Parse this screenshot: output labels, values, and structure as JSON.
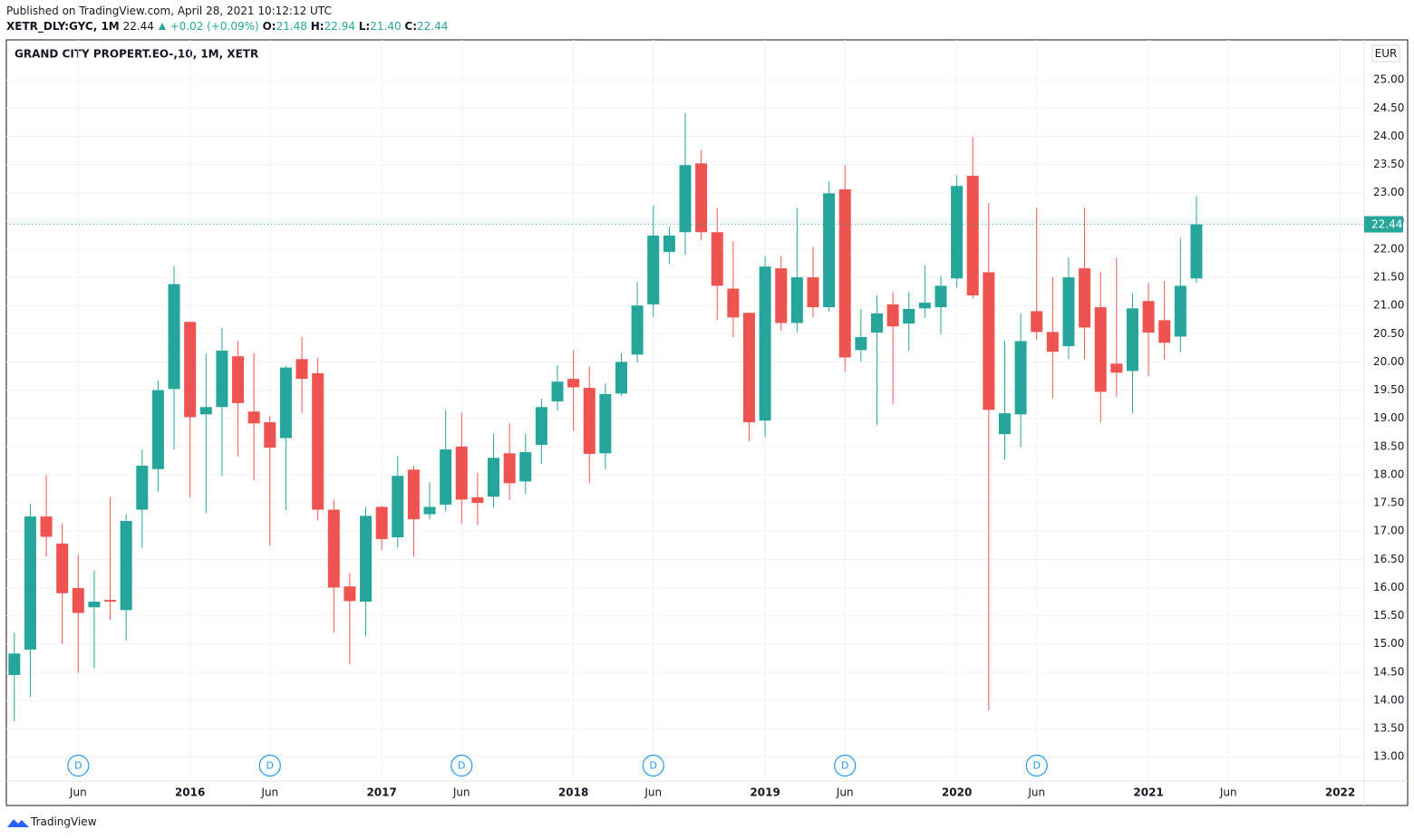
{
  "header": {
    "published": "Published on TradingView.com, April 28, 2021 10:12:12 UTC",
    "symbol": "XETR_DLY:GYC, 1M",
    "last": "22.44",
    "change": "+0.02 (+0.09%)",
    "o_label": "O:",
    "o": "21.48",
    "h_label": "H:",
    "h": "22.94",
    "l_label": "L:",
    "l": "21.40",
    "c_label": "C:",
    "c": "22.44"
  },
  "footer": {
    "brand": "TradingView"
  },
  "chart_data": {
    "type": "candlestick",
    "title": "GRAND CITY PROPERT.EO-,10, 1M, XETR",
    "currency": "EUR",
    "x": [
      "2015-02",
      "2015-03",
      "2015-04",
      "2015-05",
      "2015-06",
      "2015-07",
      "2015-08",
      "2015-09",
      "2015-10",
      "2015-11",
      "2015-12",
      "2016-01",
      "2016-02",
      "2016-03",
      "2016-04",
      "2016-05",
      "2016-06",
      "2016-07",
      "2016-08",
      "2016-09",
      "2016-10",
      "2016-11",
      "2016-12",
      "2017-01",
      "2017-02",
      "2017-03",
      "2017-04",
      "2017-05",
      "2017-06",
      "2017-07",
      "2017-08",
      "2017-09",
      "2017-10",
      "2017-11",
      "2017-12",
      "2018-01",
      "2018-02",
      "2018-03",
      "2018-04",
      "2018-05",
      "2018-06",
      "2018-07",
      "2018-08",
      "2018-09",
      "2018-10",
      "2018-11",
      "2018-12",
      "2019-01",
      "2019-02",
      "2019-03",
      "2019-04",
      "2019-05",
      "2019-06",
      "2019-07",
      "2019-08",
      "2019-09",
      "2019-10",
      "2019-11",
      "2019-12",
      "2020-01",
      "2020-02",
      "2020-03",
      "2020-04",
      "2020-05",
      "2020-06",
      "2020-07",
      "2020-08",
      "2020-09",
      "2020-10",
      "2020-11",
      "2020-12",
      "2021-01",
      "2021-02",
      "2021-03",
      "2021-04"
    ],
    "open": [
      14.45,
      14.9,
      17.26,
      16.78,
      15.99,
      15.65,
      15.78,
      15.6,
      17.38,
      18.1,
      19.52,
      20.71,
      19.07,
      19.2,
      20.1,
      19.12,
      18.93,
      18.65,
      20.05,
      19.8,
      17.38,
      16.02,
      15.75,
      17.43,
      16.89,
      18.09,
      17.3,
      17.47,
      18.5,
      17.6,
      17.61,
      18.38,
      17.88,
      18.53,
      19.3,
      19.7,
      19.54,
      18.38,
      19.44,
      20.13,
      21.02,
      21.95,
      22.3,
      23.52,
      22.3,
      21.3,
      20.87,
      18.96,
      21.66,
      20.69,
      21.5,
      20.97,
      23.06,
      20.21,
      20.52,
      21.02,
      20.68,
      20.95,
      20.97,
      21.48,
      23.3,
      21.59,
      18.72,
      19.07,
      20.9,
      20.53,
      20.28,
      21.66,
      20.97,
      19.97,
      19.84,
      21.08,
      20.74,
      20.45,
      21.48
    ],
    "high": [
      15.2,
      17.48,
      18.0,
      17.13,
      16.58,
      16.3,
      17.6,
      17.3,
      18.45,
      19.67,
      21.7,
      20.71,
      20.15,
      20.6,
      20.37,
      20.16,
      19.04,
      19.93,
      20.44,
      20.07,
      17.56,
      16.26,
      17.43,
      17.45,
      18.33,
      18.16,
      17.87,
      19.15,
      19.1,
      18.03,
      18.73,
      18.91,
      18.73,
      19.35,
      19.94,
      20.21,
      19.92,
      19.62,
      20.15,
      21.42,
      22.77,
      22.4,
      24.41,
      23.76,
      22.73,
      22.14,
      20.87,
      21.87,
      21.87,
      22.73,
      22.04,
      23.2,
      23.49,
      20.94,
      21.18,
      21.24,
      21.24,
      21.71,
      21.53,
      23.31,
      23.99,
      22.82,
      20.37,
      20.86,
      22.73,
      21.5,
      21.85,
      22.73,
      21.59,
      21.84,
      21.21,
      21.4,
      21.43,
      22.19,
      22.94
    ],
    "low": [
      13.63,
      14.06,
      16.55,
      15.0,
      14.49,
      14.57,
      15.43,
      15.06,
      16.7,
      17.7,
      18.45,
      17.6,
      17.32,
      17.98,
      18.33,
      17.9,
      16.74,
      17.37,
      19.1,
      17.19,
      15.2,
      14.64,
      15.14,
      16.66,
      16.71,
      16.55,
      17.21,
      17.35,
      17.14,
      17.11,
      17.42,
      17.55,
      17.66,
      18.19,
      19.14,
      18.78,
      17.85,
      18.1,
      19.4,
      19.99,
      20.8,
      21.74,
      21.9,
      22.16,
      20.74,
      20.44,
      18.59,
      18.67,
      20.55,
      20.53,
      20.79,
      20.89,
      19.83,
      20.0,
      18.88,
      19.25,
      20.2,
      20.78,
      20.49,
      21.32,
      21.13,
      13.82,
      18.27,
      18.49,
      20.39,
      19.35,
      20.05,
      20.05,
      18.93,
      19.38,
      19.09,
      19.75,
      20.04,
      20.18,
      21.4
    ],
    "close": [
      14.83,
      17.26,
      16.9,
      15.9,
      15.55,
      15.75,
      15.75,
      17.18,
      18.16,
      19.5,
      21.38,
      19.02,
      19.2,
      20.2,
      19.27,
      18.91,
      18.48,
      19.9,
      19.7,
      17.38,
      16.0,
      15.76,
      17.27,
      16.86,
      17.98,
      17.21,
      17.43,
      18.45,
      17.56,
      17.5,
      18.3,
      17.85,
      18.4,
      19.2,
      19.65,
      19.55,
      18.37,
      19.43,
      20.0,
      21.0,
      22.24,
      22.24,
      23.49,
      22.3,
      21.35,
      20.79,
      18.93,
      21.69,
      20.69,
      21.5,
      20.97,
      22.99,
      20.08,
      20.44,
      20.86,
      20.63,
      20.94,
      21.05,
      21.35,
      23.12,
      21.18,
      19.15,
      19.09,
      20.37,
      20.53,
      20.18,
      21.5,
      20.61,
      19.47,
      19.81,
      20.95,
      20.52,
      20.34,
      21.35,
      22.44
    ],
    "up_color": "#26a69a",
    "down_color": "#ef5350",
    "xlim": [
      "2015-02",
      "2022-02"
    ],
    "xticks": [
      {
        "value": "2015-06",
        "label": "Jun"
      },
      {
        "value": "2016-01",
        "label": "2016"
      },
      {
        "value": "2016-06",
        "label": "Jun"
      },
      {
        "value": "2017-01",
        "label": "2017"
      },
      {
        "value": "2017-06",
        "label": "Jun"
      },
      {
        "value": "2018-01",
        "label": "2018"
      },
      {
        "value": "2018-06",
        "label": "Jun"
      },
      {
        "value": "2019-01",
        "label": "2019"
      },
      {
        "value": "2019-06",
        "label": "Jun"
      },
      {
        "value": "2020-01",
        "label": "2020"
      },
      {
        "value": "2020-06",
        "label": "Jun"
      },
      {
        "value": "2021-01",
        "label": "2021"
      },
      {
        "value": "2021-06",
        "label": "Jun"
      },
      {
        "value": "2022-01",
        "label": "2022"
      }
    ],
    "ylim": [
      12.57,
      25.71
    ],
    "yticks": [
      {
        "value": 13,
        "label": "13.00"
      },
      {
        "value": 13.5,
        "label": "13.50"
      },
      {
        "value": 14,
        "label": "14.00"
      },
      {
        "value": 14.5,
        "label": "14.50"
      },
      {
        "value": 15,
        "label": "15.00"
      },
      {
        "value": 15.5,
        "label": "15.50"
      },
      {
        "value": 16,
        "label": "16.00"
      },
      {
        "value": 16.5,
        "label": "16.50"
      },
      {
        "value": 17,
        "label": "17.00"
      },
      {
        "value": 17.5,
        "label": "17.50"
      },
      {
        "value": 18,
        "label": "18.00"
      },
      {
        "value": 18.5,
        "label": "18.50"
      },
      {
        "value": 19,
        "label": "19.00"
      },
      {
        "value": 19.5,
        "label": "19.50"
      },
      {
        "value": 20,
        "label": "20.00"
      },
      {
        "value": 20.5,
        "label": "20.50"
      },
      {
        "value": 21,
        "label": "21.00"
      },
      {
        "value": 21.5,
        "label": "21.50"
      },
      {
        "value": 22,
        "label": "22.00"
      },
      {
        "value": 22.5,
        "label": "22.50"
      },
      {
        "value": 23,
        "label": "23.00"
      },
      {
        "value": 23.5,
        "label": "23.50"
      },
      {
        "value": 24,
        "label": "24.00"
      },
      {
        "value": 24.5,
        "label": "24.50"
      },
      {
        "value": 25,
        "label": "25.00"
      }
    ],
    "grid": true,
    "events": [
      {
        "x": "2015-06",
        "label": "D"
      },
      {
        "x": "2016-06",
        "label": "D"
      },
      {
        "x": "2017-06",
        "label": "D"
      },
      {
        "x": "2018-06",
        "label": "D"
      },
      {
        "x": "2019-06",
        "label": "D"
      },
      {
        "x": "2020-06",
        "label": "D"
      }
    ]
  }
}
